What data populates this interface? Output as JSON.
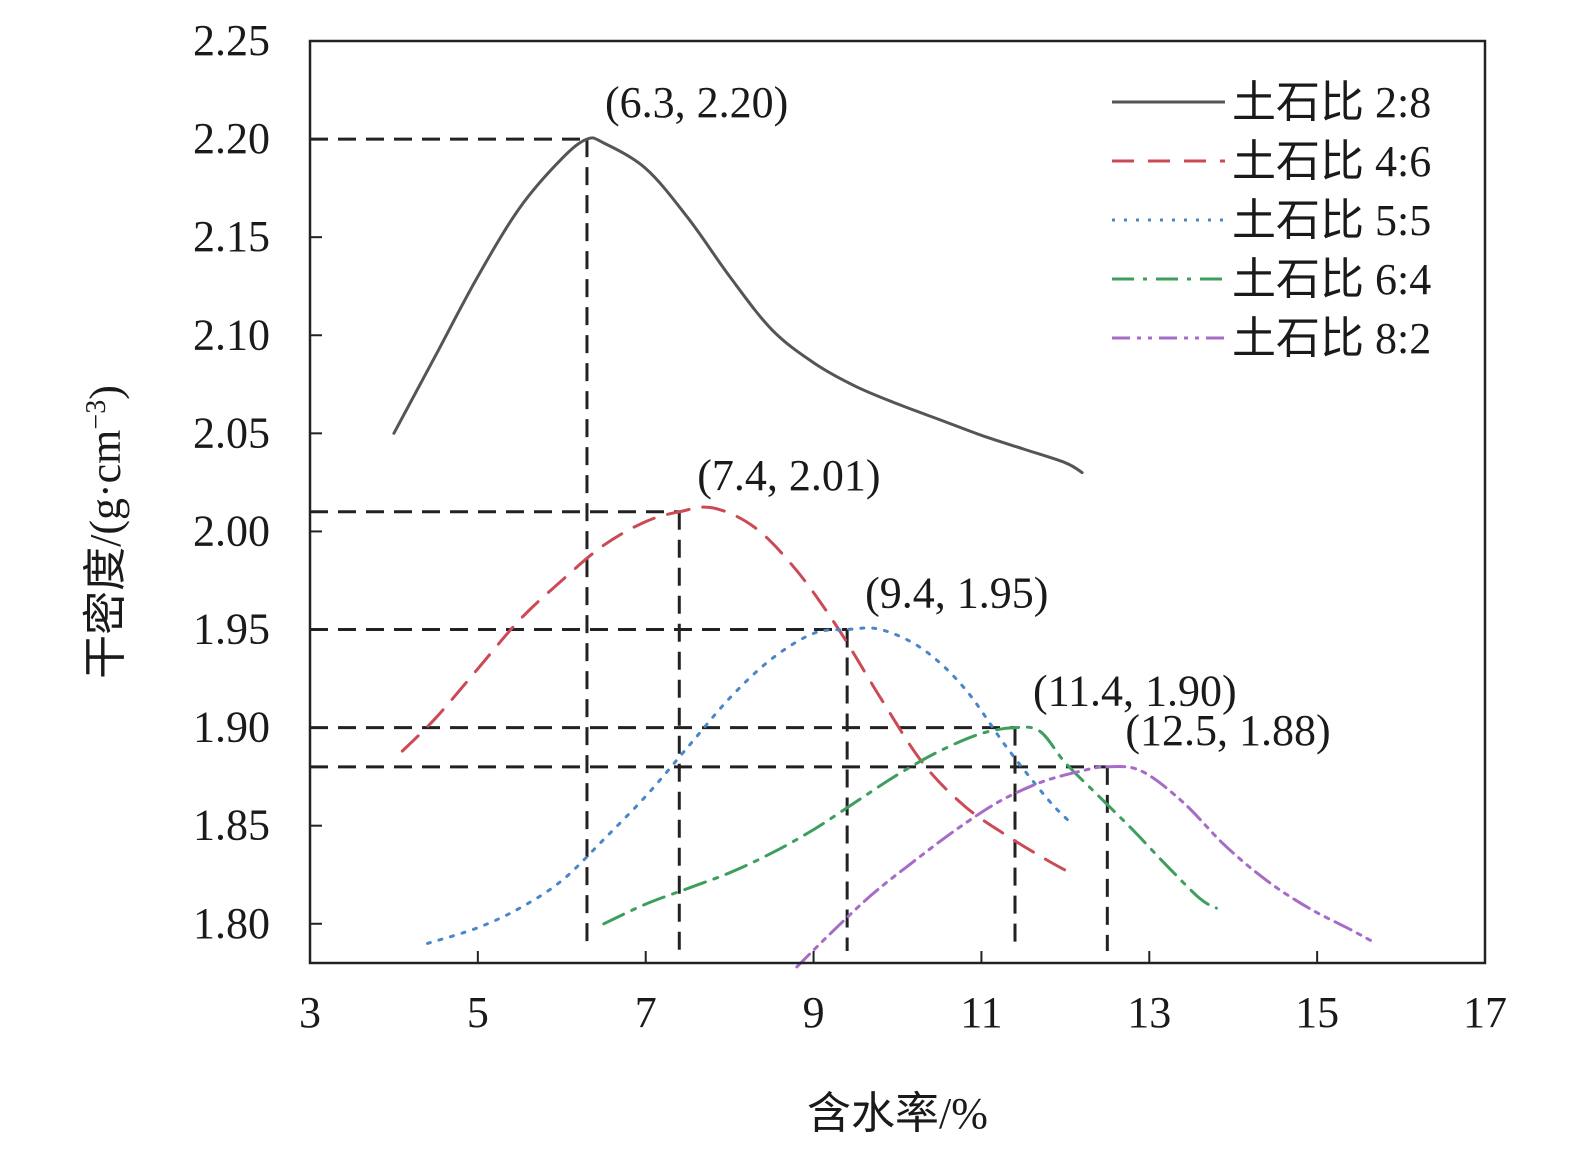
{
  "chart_data": {
    "type": "line",
    "xlabel": "含水率/%",
    "ylabel": "干密度/(g·cm",
    "ylabel_sup": "−3",
    "ylabel_close": ")",
    "xlim": [
      3,
      17
    ],
    "ylim": [
      1.78,
      2.25
    ],
    "xticks": [
      3,
      5,
      7,
      9,
      11,
      13,
      15,
      17
    ],
    "xtick_labels": [
      "3",
      "5",
      "7",
      "9",
      "11",
      "13",
      "15",
      "17"
    ],
    "yticks": [
      1.8,
      1.85,
      1.9,
      1.95,
      2.0,
      2.05,
      2.1,
      2.15,
      2.2,
      2.25
    ],
    "ytick_labels": [
      "1.80",
      "1.85",
      "1.90",
      "1.95",
      "2.00",
      "2.05",
      "2.10",
      "2.15",
      "2.20",
      "2.25"
    ],
    "grid": false,
    "legend_position": "top-right",
    "series": [
      {
        "name": "土石比 2:8",
        "color": "#555555",
        "dash": "solid",
        "x": [
          4.0,
          4.5,
          5.0,
          5.5,
          6.0,
          6.3,
          6.5,
          7.0,
          7.5,
          8.0,
          8.5,
          9.0,
          9.5,
          10.0,
          10.5,
          11.0,
          11.5,
          12.0,
          12.2
        ],
        "y": [
          2.05,
          2.09,
          2.13,
          2.165,
          2.19,
          2.2,
          2.198,
          2.185,
          2.16,
          2.13,
          2.103,
          2.086,
          2.074,
          2.065,
          2.057,
          2.049,
          2.042,
          2.035,
          2.03
        ]
      },
      {
        "name": "土石比 4:6",
        "color": "#cc4a55",
        "dash": "dashed",
        "x": [
          4.1,
          4.5,
          5.0,
          5.5,
          6.0,
          6.5,
          7.0,
          7.4,
          7.8,
          8.3,
          8.8,
          9.3,
          9.8,
          10.3,
          10.8,
          11.3,
          11.8,
          12.1
        ],
        "y": [
          1.888,
          1.905,
          1.93,
          1.955,
          1.975,
          1.993,
          2.005,
          2.01,
          2.012,
          2.002,
          1.98,
          1.95,
          1.915,
          1.882,
          1.86,
          1.845,
          1.832,
          1.825
        ]
      },
      {
        "name": "土石比 5:5",
        "color": "#4a86c8",
        "dash": "dotted",
        "x": [
          4.4,
          5.0,
          5.5,
          6.0,
          6.5,
          7.0,
          7.5,
          8.0,
          8.5,
          9.0,
          9.4,
          9.8,
          10.3,
          10.8,
          11.3,
          11.8,
          12.1
        ],
        "y": [
          1.79,
          1.798,
          1.808,
          1.822,
          1.843,
          1.865,
          1.89,
          1.915,
          1.935,
          1.948,
          1.95,
          1.95,
          1.94,
          1.92,
          1.89,
          1.863,
          1.85
        ]
      },
      {
        "name": "土石比 6:4",
        "color": "#3e9e5e",
        "dash": "dash-dot",
        "x": [
          6.5,
          7.0,
          7.5,
          8.0,
          8.5,
          9.0,
          9.5,
          10.0,
          10.5,
          11.0,
          11.4,
          11.7,
          12.0,
          12.4,
          12.8,
          13.2,
          13.6,
          13.8
        ],
        "y": [
          1.8,
          1.81,
          1.818,
          1.826,
          1.836,
          1.848,
          1.862,
          1.876,
          1.888,
          1.897,
          1.9,
          1.898,
          1.882,
          1.865,
          1.848,
          1.83,
          1.813,
          1.808
        ]
      },
      {
        "name": "土石比 8:2",
        "color": "#a66cc8",
        "dash": "dash-dot-dot",
        "x": [
          8.8,
          9.2,
          9.7,
          10.2,
          10.7,
          11.2,
          11.7,
          12.2,
          12.5,
          12.9,
          13.4,
          13.9,
          14.4,
          14.9,
          15.4,
          15.7
        ],
        "y": [
          1.778,
          1.795,
          1.815,
          1.832,
          1.848,
          1.862,
          1.872,
          1.878,
          1.88,
          1.878,
          1.862,
          1.84,
          1.822,
          1.808,
          1.797,
          1.79
        ]
      }
    ],
    "annotations": [
      {
        "text": "(6.3, 2.20)",
        "x": 6.3,
        "y": 2.2
      },
      {
        "text": "(7.4, 2.01)",
        "x": 7.4,
        "y": 2.01
      },
      {
        "text": "(9.4, 1.95)",
        "x": 9.4,
        "y": 1.95
      },
      {
        "text": "(11.4, 1.90)",
        "x": 11.4,
        "y": 1.9
      },
      {
        "text": "(12.5, 1.88)",
        "x": 12.5,
        "y": 1.88
      }
    ]
  }
}
